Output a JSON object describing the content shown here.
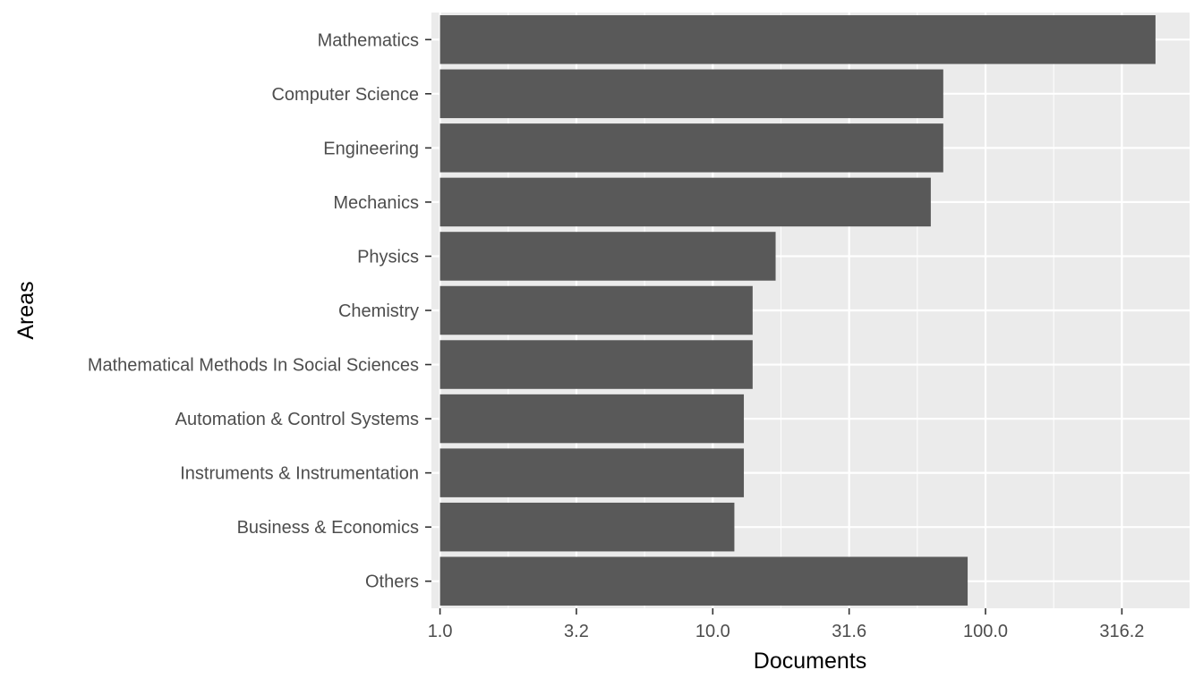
{
  "chart_data": {
    "type": "bar",
    "orientation": "horizontal",
    "xlabel": "Documents",
    "ylabel": "Areas",
    "x_scale": "log10",
    "xlim": [
      0.93,
      560
    ],
    "x_ticks": [
      1,
      3.1623,
      10,
      31.623,
      100,
      316.23
    ],
    "x_tick_labels": [
      "1.0",
      "3.2",
      "10.0",
      "31.6",
      "100.0",
      "316.2"
    ],
    "categories": [
      "Mathematics",
      "Computer Science",
      "Engineering",
      "Mechanics",
      "Physics",
      "Chemistry",
      "Mathematical Methods In Social Sciences",
      "Automation & Control Systems",
      "Instruments & Instrumentation",
      "Business & Economics",
      "Others"
    ],
    "values": [
      420,
      70,
      70,
      63,
      17,
      14,
      14,
      13,
      13,
      12,
      86
    ],
    "grid": true,
    "colors": {
      "panel": "#ebebeb",
      "bar": "#595959",
      "grid": "#ffffff"
    }
  }
}
